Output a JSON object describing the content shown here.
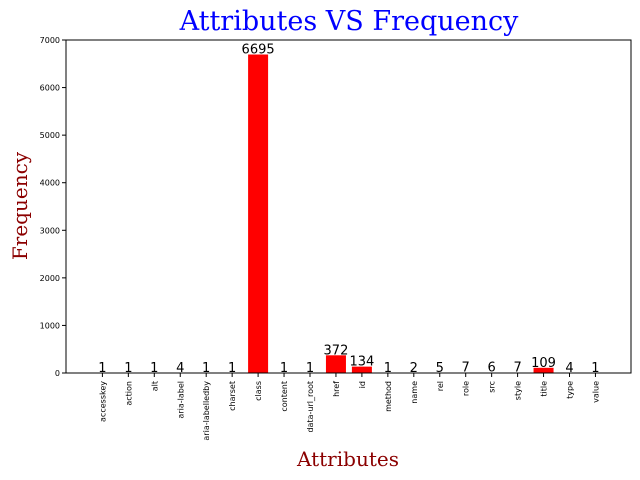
{
  "chart_data": {
    "type": "bar",
    "title": "Attributes VS Frequency",
    "xlabel": "Attributes",
    "ylabel": "Frequency",
    "categories": [
      "accesskey",
      "action",
      "alt",
      "aria-label",
      "aria-labelledby",
      "charset",
      "class",
      "content",
      "data-url_root",
      "href",
      "id",
      "method",
      "name",
      "rel",
      "role",
      "src",
      "style",
      "title",
      "type",
      "value"
    ],
    "values": [
      1,
      1,
      1,
      4,
      1,
      1,
      6695,
      1,
      1,
      372,
      134,
      1,
      2,
      5,
      7,
      6,
      7,
      109,
      4,
      1
    ],
    "ylim": [
      0,
      7000
    ],
    "yticks": [
      0,
      1000,
      2000,
      3000,
      4000,
      5000,
      6000,
      7000
    ],
    "bar_color": "#ff0000",
    "title_color": "#0000ff",
    "label_color": "#8b0000",
    "grid": false,
    "legend": false
  }
}
